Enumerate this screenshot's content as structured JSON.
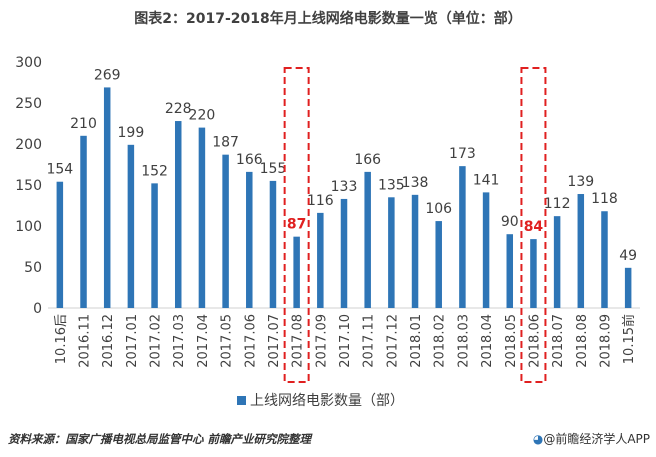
{
  "chart_data": {
    "type": "bar",
    "title": "图表2：2017-2018年月上线网络电影数量一览（单位：部）",
    "categories": [
      "10.16后",
      "2016.11",
      "2016.12",
      "2017.01",
      "2017.02",
      "2017.03",
      "2017.04",
      "2017.05",
      "2017.06",
      "2017.07",
      "2017.08",
      "2017.09",
      "2017.10",
      "2017.11",
      "2017.12",
      "2018.01",
      "2018.02",
      "2018.03",
      "2018.04",
      "2018.05",
      "2018.06",
      "2018.07",
      "2018.08",
      "2018.09",
      "10.15前"
    ],
    "series": [
      {
        "name": "上线网络电影数量（部）",
        "values": [
          154,
          210,
          269,
          199,
          152,
          228,
          220,
          187,
          166,
          155,
          87,
          116,
          133,
          166,
          135,
          138,
          106,
          173,
          141,
          90,
          84,
          112,
          139,
          118,
          49
        ]
      }
    ],
    "highlighted_categories": [
      "2017.08",
      "2018.06"
    ],
    "ylim": [
      0,
      300
    ],
    "yticks": [
      0,
      50,
      100,
      150,
      200,
      250,
      300
    ],
    "grid": false,
    "legend_position": "bottom",
    "colors": {
      "bar": "#2e75b6",
      "highlight_label": "#e02020",
      "highlight_box": "#e02020",
      "axis_text": "#404040"
    }
  },
  "footer": {
    "source": "资料来源：国家广播电视总局监管中心 前瞻产业研究院整理",
    "logo_icon": "qianzhan-logo-icon",
    "brand": "@前瞻经济学人APP"
  }
}
